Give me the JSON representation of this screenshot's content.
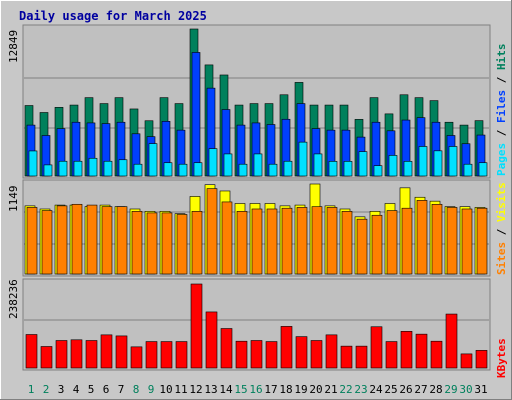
{
  "chart_data": [
    {
      "type": "bar",
      "title": "Daily usage for March 2025",
      "panel": "hits-files-pages",
      "ymax_label": "12849",
      "ylim": [
        0,
        12849
      ],
      "ylabel_parts": [
        "Pages",
        "/",
        "Files",
        "/",
        "Hits"
      ],
      "categories": [
        "1",
        "2",
        "3",
        "4",
        "5",
        "6",
        "7",
        "8",
        "9",
        "10",
        "11",
        "12",
        "13",
        "14",
        "15",
        "16",
        "17",
        "18",
        "19",
        "20",
        "21",
        "22",
        "23",
        "24",
        "25",
        "26",
        "27",
        "28",
        "29",
        "30",
        "31"
      ],
      "weekend_days": [
        "1",
        "2",
        "8",
        "9",
        "15",
        "16",
        "22",
        "23",
        "29",
        "30"
      ],
      "series": [
        {
          "name": "Hits",
          "color": "#00805c",
          "values": [
            6160,
            5550,
            6000,
            6200,
            6850,
            6330,
            6850,
            5860,
            4830,
            6850,
            6330,
            12849,
            9710,
            8830,
            6200,
            6330,
            6330,
            7100,
            8180,
            6200,
            6200,
            6200,
            4950,
            6850,
            5430,
            7100,
            6850,
            6590,
            4700,
            4450,
            4840
          ]
        },
        {
          "name": "Files",
          "color": "#0040ff",
          "values": [
            4450,
            3540,
            4140,
            4700,
            4640,
            4580,
            4700,
            3690,
            3440,
            4780,
            4010,
            10800,
            7680,
            5810,
            4450,
            4640,
            4500,
            4960,
            6330,
            4140,
            4010,
            4010,
            3400,
            4700,
            3950,
            4890,
            5100,
            4700,
            3540,
            2820,
            3580
          ]
        },
        {
          "name": "Pages",
          "color": "#00e0ff",
          "values": [
            2190,
            970,
            1290,
            1290,
            1550,
            1290,
            1420,
            1030,
            2830,
            1160,
            1030,
            1160,
            2390,
            1930,
            1030,
            1930,
            1030,
            1290,
            2960,
            1930,
            1280,
            1280,
            2130,
            900,
            1800,
            1280,
            2580,
            2200,
            2580,
            1030,
            1160
          ]
        }
      ]
    },
    {
      "type": "bar",
      "panel": "visits-sites",
      "ymax_label": "1149",
      "ylim": [
        0,
        1149
      ],
      "ylabel_parts": [
        "Sites",
        "/",
        "Visits"
      ],
      "categories": [
        "1",
        "2",
        "3",
        "4",
        "5",
        "6",
        "7",
        "8",
        "9",
        "10",
        "11",
        "12",
        "13",
        "14",
        "15",
        "16",
        "17",
        "18",
        "19",
        "20",
        "21",
        "22",
        "23",
        "24",
        "25",
        "26",
        "27",
        "28",
        "29",
        "30",
        "31"
      ],
      "series": [
        {
          "name": "Visits",
          "color": "#ffff00",
          "values": [
            870,
            830,
            880,
            880,
            860,
            880,
            860,
            830,
            800,
            800,
            770,
            990,
            1140,
            1060,
            900,
            900,
            900,
            870,
            880,
            1149,
            870,
            830,
            730,
            800,
            900,
            1100,
            980,
            930,
            860,
            860,
            850
          ]
        },
        {
          "name": "Sites",
          "color": "#ff8000",
          "values": [
            850,
            810,
            870,
            890,
            880,
            860,
            860,
            800,
            780,
            780,
            760,
            800,
            1090,
            920,
            800,
            830,
            830,
            840,
            850,
            860,
            850,
            800,
            700,
            750,
            810,
            840,
            940,
            890,
            850,
            830,
            840
          ]
        }
      ]
    },
    {
      "type": "bar",
      "panel": "kbytes",
      "ymax_label": "238236",
      "ylim": [
        0,
        238236
      ],
      "ylabel_parts": [
        "KBytes"
      ],
      "categories": [
        "1",
        "2",
        "3",
        "4",
        "5",
        "6",
        "7",
        "8",
        "9",
        "10",
        "11",
        "12",
        "13",
        "14",
        "15",
        "16",
        "17",
        "18",
        "19",
        "20",
        "21",
        "22",
        "23",
        "24",
        "25",
        "26",
        "27",
        "28",
        "29",
        "30",
        "31"
      ],
      "series": [
        {
          "name": "KBytes",
          "color": "#ff0000",
          "values": [
            95000,
            61000,
            78000,
            80000,
            78000,
            94000,
            91000,
            60000,
            75000,
            75000,
            75000,
            238236,
            159000,
            112000,
            76000,
            78000,
            75000,
            118000,
            89000,
            78000,
            94000,
            62000,
            62000,
            117000,
            75000,
            104000,
            96000,
            76000,
            153000,
            40000,
            50000
          ]
        }
      ]
    }
  ]
}
